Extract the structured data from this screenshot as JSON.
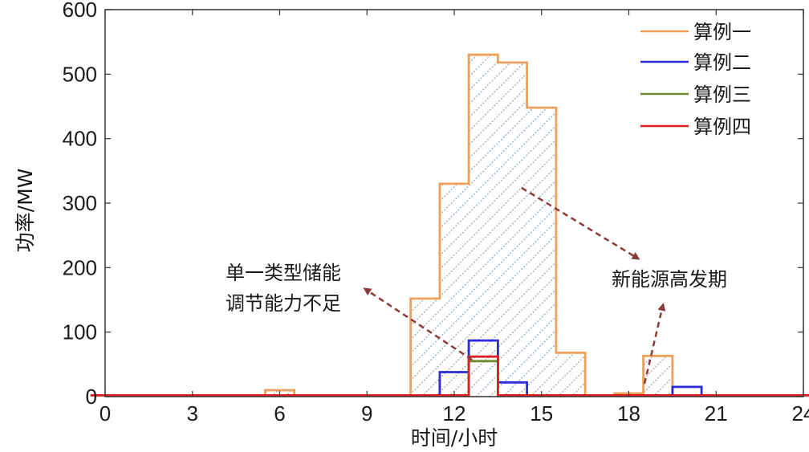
{
  "chart_data": {
    "type": "line",
    "step": true,
    "xlabel": "时间/小时",
    "ylabel": "功率/MW",
    "xlim": [
      0,
      24
    ],
    "ylim": [
      0,
      600
    ],
    "xticks": [
      "0",
      "3",
      "6",
      "9",
      "12",
      "15",
      "18",
      "21",
      "24"
    ],
    "yticks": [
      "0",
      "100",
      "200",
      "300",
      "400",
      "500",
      "600"
    ],
    "x": [
      0,
      1,
      2,
      3,
      4,
      5,
      6,
      7,
      8,
      9,
      10,
      11,
      12,
      13,
      14,
      15,
      16,
      17,
      18,
      19,
      20,
      21,
      22,
      23,
      24
    ],
    "legend_position": "top-right",
    "series": [
      {
        "name": "算例一",
        "color": "#f0a05a",
        "hatched": true,
        "values": [
          2,
          2,
          2,
          2,
          2,
          2,
          10,
          2,
          2,
          2,
          2,
          152,
          330,
          530,
          518,
          448,
          68,
          2,
          5,
          63,
          2,
          2,
          2,
          2,
          2
        ]
      },
      {
        "name": "算例二",
        "color": "#2b2bd9",
        "values": [
          2,
          2,
          2,
          2,
          2,
          2,
          2,
          2,
          2,
          2,
          2,
          2,
          38,
          87,
          22,
          2,
          2,
          2,
          2,
          2,
          15,
          2,
          2,
          2,
          2
        ]
      },
      {
        "name": "算例三",
        "color": "#6e8b2e",
        "values": [
          2,
          2,
          2,
          2,
          2,
          2,
          2,
          2,
          2,
          2,
          2,
          2,
          2,
          55,
          2,
          2,
          2,
          2,
          2,
          2,
          2,
          2,
          2,
          2,
          2
        ]
      },
      {
        "name": "算例四",
        "color": "#e02020",
        "values": [
          2,
          2,
          2,
          2,
          2,
          2,
          2,
          2,
          2,
          2,
          2,
          2,
          2,
          62,
          2,
          2,
          2,
          2,
          2,
          2,
          2,
          2,
          2,
          2,
          2
        ]
      }
    ],
    "annotations": [
      {
        "id": "storage",
        "lines": [
          "单一类型储能",
          "调节能力不足"
        ],
        "arrow_color": "#8b3a3a"
      },
      {
        "id": "renewable",
        "lines": [
          "新能源高发期"
        ],
        "arrow_color": "#8b3a3a"
      }
    ]
  }
}
